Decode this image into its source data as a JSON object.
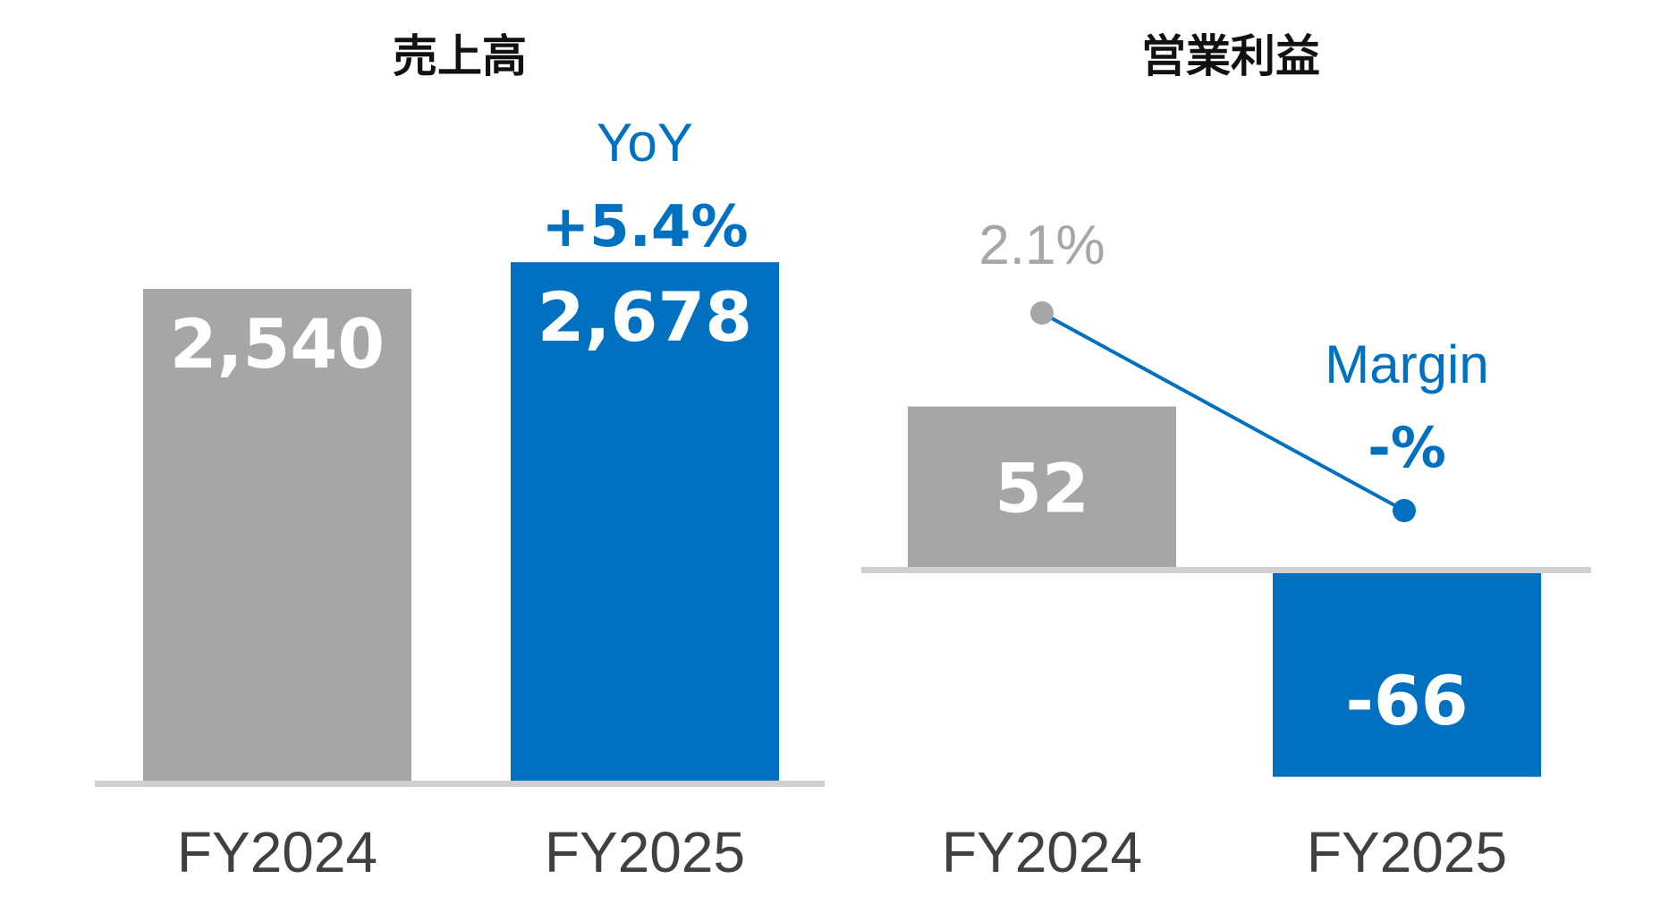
{
  "colors": {
    "gray": "#a6a6a6",
    "blue": "#0070c0",
    "baseline": "#d0d0d0",
    "category_text": "#404040",
    "title_text": "#111111"
  },
  "chart_data": [
    {
      "type": "bar",
      "title": "売上高",
      "categories": [
        "FY2024",
        "FY2025"
      ],
      "values": [
        2540,
        2678
      ],
      "value_labels": [
        "2,540",
        "2,678"
      ],
      "bar_colors": [
        "#a6a6a6",
        "#0070c0"
      ],
      "ylim": [
        0,
        3200
      ],
      "annotation": {
        "label": "YoY",
        "value": "+5.4%"
      },
      "grid": false
    },
    {
      "type": "bar",
      "title": "営業利益",
      "categories": [
        "FY2024",
        "FY2025"
      ],
      "values": [
        52,
        -66
      ],
      "value_labels": [
        "52",
        "-66"
      ],
      "bar_colors": [
        "#a6a6a6",
        "#0070c0"
      ],
      "ylim": [
        -90,
        180
      ],
      "grid": false,
      "margin_line": {
        "values": [
          2.1,
          null
        ],
        "labels": [
          "2.1%",
          "-%"
        ],
        "series_label": "Margin"
      }
    }
  ]
}
